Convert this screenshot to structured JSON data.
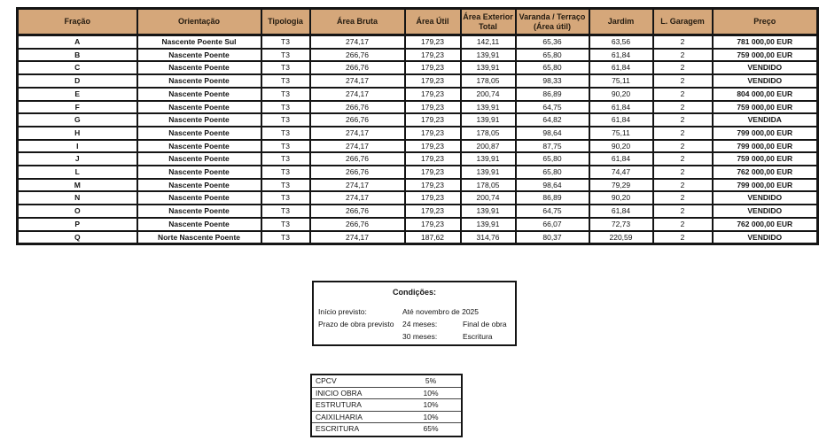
{
  "colors": {
    "header_bg": "#d5a77a",
    "border": "#151515",
    "text": "#141414"
  },
  "table": {
    "headers": [
      "Fração",
      "Orientação",
      "Tipologia",
      "Área Bruta",
      "Área Útil",
      "Área Exterior Total",
      "Varanda / Terraço (Área útil)",
      "Jardim",
      "L. Garagem",
      "Preço"
    ],
    "rows": [
      [
        "A",
        "Nascente Poente Sul",
        "T3",
        "274,17",
        "179,23",
        "142,11",
        "65,36",
        "63,56",
        "2",
        "781 000,00 EUR"
      ],
      [
        "B",
        "Nascente Poente",
        "T3",
        "266,76",
        "179,23",
        "139,91",
        "65,80",
        "61,84",
        "2",
        "759 000,00 EUR"
      ],
      [
        "C",
        "Nascente Poente",
        "T3",
        "266,76",
        "179,23",
        "139,91",
        "65,80",
        "61,84",
        "2",
        "VENDIDO"
      ],
      [
        "D",
        "Nascente Poente",
        "T3",
        "274,17",
        "179,23",
        "178,05",
        "98,33",
        "75,11",
        "2",
        "VENDIDO"
      ],
      [
        "E",
        "Nascente Poente",
        "T3",
        "274,17",
        "179,23",
        "200,74",
        "86,89",
        "90,20",
        "2",
        "804 000,00 EUR"
      ],
      [
        "F",
        "Nascente Poente",
        "T3",
        "266,76",
        "179,23",
        "139,91",
        "64,75",
        "61,84",
        "2",
        "759 000,00 EUR"
      ],
      [
        "G",
        "Nascente Poente",
        "T3",
        "266,76",
        "179,23",
        "139,91",
        "64,82",
        "61,84",
        "2",
        "VENDIDA"
      ],
      [
        "H",
        "Nascente Poente",
        "T3",
        "274,17",
        "179,23",
        "178,05",
        "98,64",
        "75,11",
        "2",
        "799 000,00 EUR"
      ],
      [
        "I",
        "Nascente Poente",
        "T3",
        "274,17",
        "179,23",
        "200,87",
        "87,75",
        "90,20",
        "2",
        "799 000,00 EUR"
      ],
      [
        "J",
        "Nascente Poente",
        "T3",
        "266,76",
        "179,23",
        "139,91",
        "65,80",
        "61,84",
        "2",
        "759 000,00 EUR"
      ],
      [
        "L",
        "Nascente Poente",
        "T3",
        "266,76",
        "179,23",
        "139,91",
        "65,80",
        "74,47",
        "2",
        "762 000,00 EUR"
      ],
      [
        "M",
        "Nascente Poente",
        "T3",
        "274,17",
        "179,23",
        "178,05",
        "98,64",
        "79,29",
        "2",
        "799 000,00 EUR"
      ],
      [
        "N",
        "Nascente Poente",
        "T3",
        "274,17",
        "179,23",
        "200,74",
        "86,89",
        "90,20",
        "2",
        "VENDIDO"
      ],
      [
        "O",
        "Nascente Poente",
        "T3",
        "266,76",
        "179,23",
        "139,91",
        "64,75",
        "61,84",
        "2",
        "VENDIDO"
      ],
      [
        "P",
        "Nascente Poente",
        "T3",
        "266,76",
        "179,23",
        "139,91",
        "66,07",
        "72,73",
        "2",
        "762 000,00 EUR"
      ],
      [
        "Q",
        "Norte Nascente Poente",
        "T3",
        "274,17",
        "187,62",
        "314,76",
        "80,37",
        "220,59",
        "2",
        "VENDIDO"
      ]
    ]
  },
  "conditions": {
    "title": "Condições:",
    "rows": [
      {
        "c1": "Início previsto:",
        "c2": "Até novembro de 2025",
        "c3": ""
      },
      {
        "c1": "Prazo de obra previsto",
        "c2": "24 meses:",
        "c3": "Final de obra"
      },
      {
        "c1": "",
        "c2": "30 meses:",
        "c3": "Escritura"
      }
    ]
  },
  "payments": {
    "rows": [
      {
        "label": "CPCV",
        "value": "5%"
      },
      {
        "label": "INICIO OBRA",
        "value": "10%"
      },
      {
        "label": "ESTRUTURA",
        "value": "10%"
      },
      {
        "label": "CAIXILHARIA",
        "value": "10%"
      },
      {
        "label": "ESCRITURA",
        "value": "65%"
      }
    ]
  }
}
